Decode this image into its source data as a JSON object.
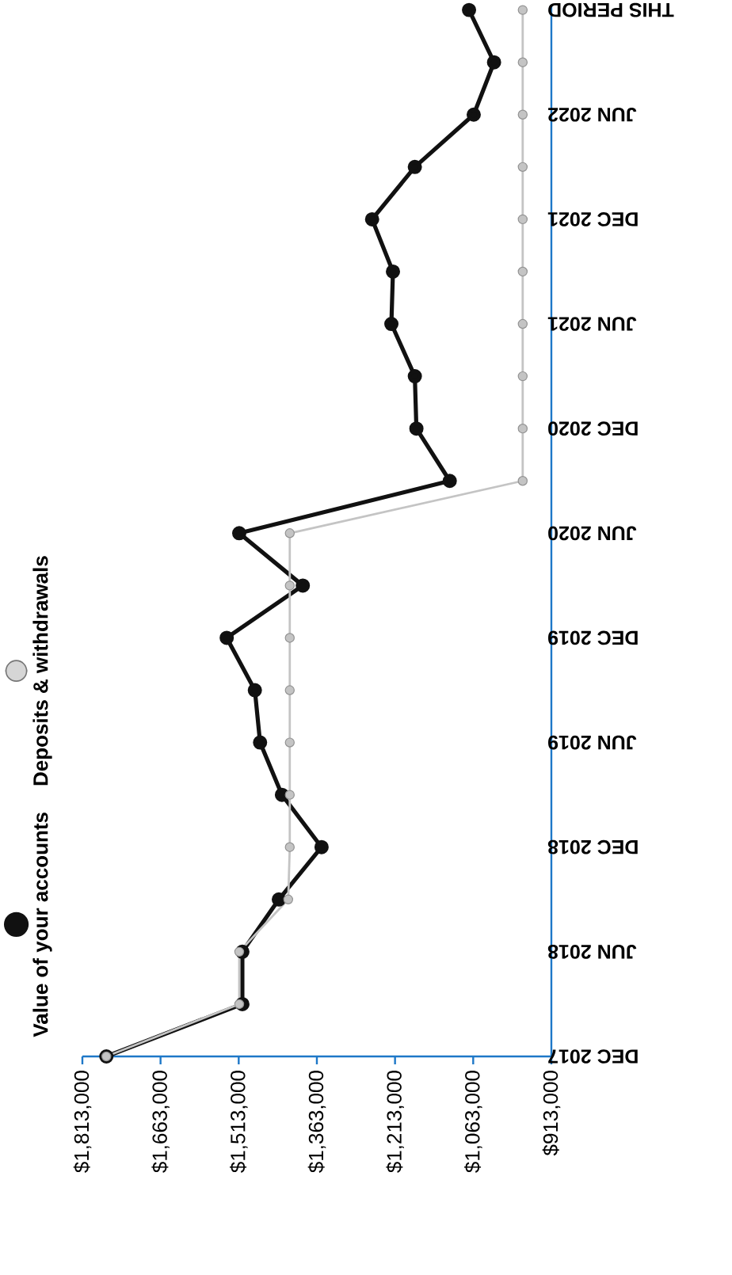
{
  "chart_data": {
    "type": "line",
    "orientation": "horizontal",
    "categories": [
      "THIS PERIOD",
      null,
      "JUN 2022",
      null,
      "DEC 2021",
      null,
      "JUN 2021",
      null,
      "DEC 2020",
      null,
      "JUN 2020",
      null,
      "DEC 2019",
      null,
      "JUN 2019",
      null,
      "DEC 2018",
      null,
      "JUN 2018",
      null,
      "DEC 2017"
    ],
    "series": [
      {
        "name": "Value of your accounts",
        "color": "#111111",
        "values": [
          1071000,
          1023000,
          1062000,
          1175000,
          1257000,
          1217000,
          1220000,
          1175000,
          1172000,
          1108000,
          1512000,
          1390000,
          1536000,
          1482000,
          1472000,
          1430000,
          1354000,
          1436000,
          1506000,
          1506000,
          1767000
        ]
      },
      {
        "name": "Deposits & withdrawals",
        "color": "#c4c4c4",
        "values": [
          968000,
          968000,
          968000,
          968000,
          968000,
          968000,
          968000,
          968000,
          968000,
          968000,
          1415000,
          1415000,
          1415000,
          1415000,
          1415000,
          1415000,
          1415000,
          1418000,
          1512000,
          1512000,
          1767000
        ]
      }
    ],
    "xlim": [
      1813000,
      913000
    ],
    "xticks": [
      {
        "value": 1813000,
        "label": "$1,813,000"
      },
      {
        "value": 1663000,
        "label": "$1,663,000"
      },
      {
        "value": 1513000,
        "label": "$1,513,000"
      },
      {
        "value": 1363000,
        "label": "$1,363,000"
      },
      {
        "value": 1213000,
        "label": "$1,213,000"
      },
      {
        "value": 1063000,
        "label": "$1,063,000"
      },
      {
        "value": 913000,
        "label": "$913,000"
      }
    ],
    "legend": "left",
    "marker": "circle"
  }
}
